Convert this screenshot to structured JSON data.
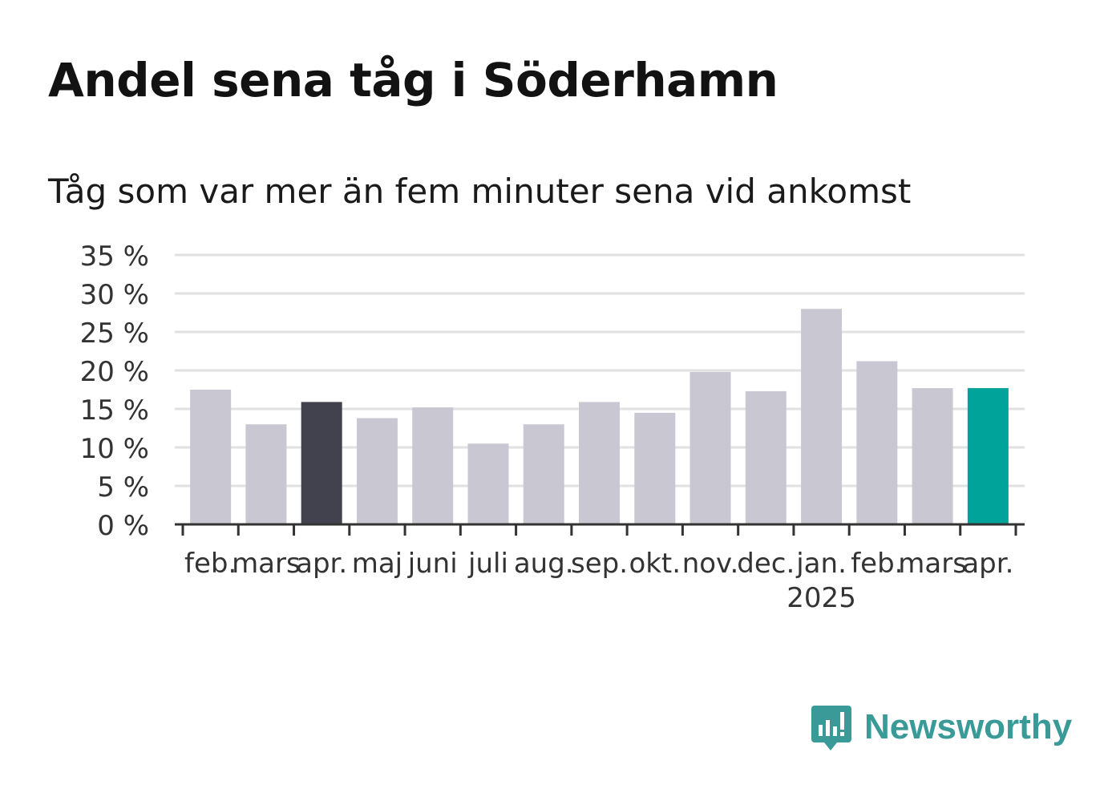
{
  "title": "Andel sena tåg i Söderhamn",
  "subtitle": "Tåg som var mer än fem minuter sena vid ankomst",
  "brand": {
    "name": "Newsworthy",
    "color": "#3a9a98"
  },
  "colors": {
    "default": "#c9c8d2",
    "dark": "#42414e",
    "highlight": "#00a39a"
  },
  "chart_data": {
    "type": "bar",
    "categories": [
      "feb.",
      "mars",
      "apr.",
      "maj",
      "juni",
      "juli",
      "aug.",
      "sep.",
      "okt.",
      "nov.",
      "dec.",
      "jan.",
      "feb.",
      "mars",
      "apr."
    ],
    "year_labels": [
      "",
      "",
      "",
      "",
      "",
      "",
      "",
      "",
      "",
      "",
      "",
      "2025",
      "",
      "",
      ""
    ],
    "values": [
      17.5,
      13.0,
      15.9,
      13.8,
      15.2,
      10.5,
      13.0,
      15.9,
      14.5,
      19.8,
      17.3,
      28.0,
      21.2,
      17.7,
      17.7
    ],
    "bar_styles": [
      "default",
      "default",
      "dark",
      "default",
      "default",
      "default",
      "default",
      "default",
      "default",
      "default",
      "default",
      "default",
      "default",
      "default",
      "highlight"
    ],
    "ylim": [
      0,
      35
    ],
    "yticks": [
      0,
      5,
      10,
      15,
      20,
      25,
      30,
      35
    ],
    "ytick_labels": [
      "0 %",
      "5 %",
      "10 %",
      "15 %",
      "20 %",
      "25 %",
      "30 %",
      "35 %"
    ],
    "grid": true,
    "xlabel": "",
    "ylabel": ""
  }
}
